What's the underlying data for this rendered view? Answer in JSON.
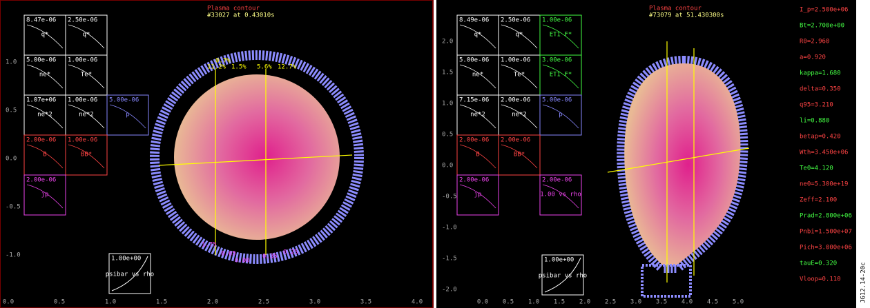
{
  "panels": [
    {
      "title": "Plasma contour",
      "subtitle": "#33027 at 0.43010s",
      "xticks": [
        "0.0",
        "0.5",
        "1.0",
        "1.5",
        "2.0",
        "2.5",
        "3.0",
        "3.5",
        "4.0"
      ],
      "yticks": [
        "1.0",
        "0.5",
        "0.0",
        "-0.5",
        "-1.0"
      ],
      "boxes": [
        {
          "value": "8.47e-06",
          "label": "q*"
        },
        {
          "value": "2.50e-06",
          "label": "q*"
        },
        {
          "value": "5.00e-06",
          "label": "ne*"
        },
        {
          "value": "1.00e-06",
          "label": "Te*"
        },
        {
          "value": "1.07e+06",
          "label": "ne*2"
        },
        {
          "value": "1.00e-06",
          "label": "ne*2"
        },
        {
          "value": "5.00e-06",
          "label": "p"
        },
        {
          "value": "2.00e-06",
          "label": "B"
        },
        {
          "value": "1.00e-06",
          "label": "BB*"
        },
        {
          "value": "2.00e-06",
          "label": "jp"
        }
      ],
      "bottom_box": {
        "value": "1.00e+00",
        "label": "psibar vs rho"
      },
      "annotations": [
        "0.7%",
        "11.2%",
        "1.5%",
        "5.6%",
        "12.7%",
        "1.75",
        "0.65",
        "0.00",
        "0.35",
        "0.25"
      ]
    },
    {
      "title": "Plasma contour",
      "subtitle": "#73079 at 51.430300s",
      "xticks": [
        "0.0",
        "0.5",
        "1.0",
        "1.5",
        "2.0",
        "2.5",
        "3.0",
        "3.5",
        "4.0",
        "4.5",
        "5.0"
      ],
      "yticks": [
        "2.0",
        "1.5",
        "1.0",
        "0.5",
        "0.0",
        "-0.5",
        "-1.0",
        "-1.5",
        "-2.0"
      ],
      "boxes": [
        {
          "value": "8.49e-06",
          "label": "q*"
        },
        {
          "value": "2.50e-06",
          "label": "q*"
        },
        {
          "value": "1.00e-06",
          "label": "ETI F*"
        },
        {
          "value": "5.00e-06",
          "label": "ne*"
        },
        {
          "value": "1.00e-06",
          "label": "Te*"
        },
        {
          "value": "3.00e-06",
          "label": "ETI F*"
        },
        {
          "value": "7.15e-06",
          "label": "ne*2"
        },
        {
          "value": "2.00e-06",
          "label": "ne*2"
        },
        {
          "value": "5.00e-06",
          "label": "p"
        },
        {
          "value": "2.00e-06",
          "label": "B"
        },
        {
          "value": "2.00e-06",
          "label": "BB*"
        },
        {
          "value": "2.00e-06",
          "label": "jp"
        },
        {
          "value": "2.00e-06",
          "label": "1.00 vs rho"
        }
      ],
      "bottom_box": {
        "value": "1.00e+00",
        "label": "psibar vs rho"
      },
      "sidebar": [
        "I_p=2.500e+06",
        "Bt=2.700e+00",
        "R0=2.960",
        "a=0.920",
        "kappa=1.680",
        "delta=0.350",
        "q95=3.210",
        "li=0.880",
        "betap=0.420",
        "Wth=3.450e+06",
        "Te0=4.120",
        "ne0=5.300e+19",
        "Zeff=2.100",
        "Prad=2.800e+06",
        "Pnbi=1.500e+07",
        "Pich=3.000e+06",
        "tauE=0.320",
        "Vloop=0.110"
      ]
    }
  ],
  "figure_id": "JG12.14-20c"
}
